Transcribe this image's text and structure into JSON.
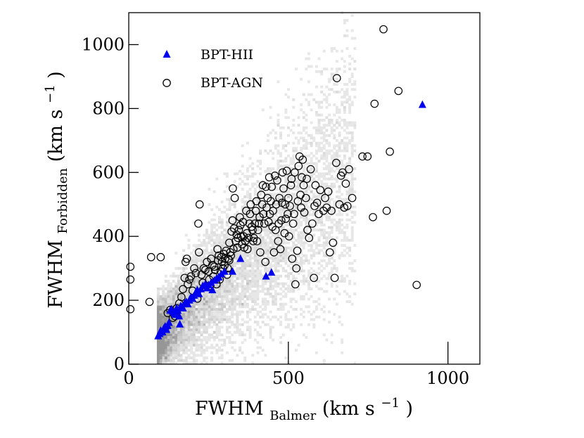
{
  "chart_data": {
    "type": "scatter",
    "title": "",
    "xlabel": {
      "main": "FWHM",
      "sub": "Balmer",
      "unit": "(km s",
      "exp": "−1",
      "close": ")"
    },
    "ylabel": {
      "main": "FWHM",
      "sub": "Forbidden",
      "unit": "(km s",
      "exp": "−1",
      "close": ")"
    },
    "xlim": [
      0,
      1100
    ],
    "ylim": [
      0,
      1100
    ],
    "xticks": [
      0,
      500,
      1000
    ],
    "yticks": [
      0,
      200,
      400,
      600,
      800,
      1000
    ],
    "xtick_labels": [
      "0",
      "500",
      "1000"
    ],
    "ytick_labels": [
      "0",
      "200",
      "400",
      "600",
      "800",
      "1000"
    ],
    "legend_position": "top-left",
    "background": "grey 2D density histogram of the full sample, densest along the one-to-one region below ~300 km/s",
    "series": [
      {
        "name": "BPT-HII",
        "marker": "filled-triangle",
        "color": "#0000ee",
        "points": [
          [
            92,
            88
          ],
          [
            97,
            95
          ],
          [
            100,
            105
          ],
          [
            106,
            100
          ],
          [
            110,
            112
          ],
          [
            114,
            118
          ],
          [
            118,
            108
          ],
          [
            122,
            120
          ],
          [
            126,
            130
          ],
          [
            130,
            168
          ],
          [
            134,
            172
          ],
          [
            138,
            165
          ],
          [
            142,
            160
          ],
          [
            146,
            155
          ],
          [
            150,
            175
          ],
          [
            154,
            168
          ],
          [
            158,
            150
          ],
          [
            160,
            125
          ],
          [
            163,
            182
          ],
          [
            166,
            178
          ],
          [
            170,
            175
          ],
          [
            175,
            190
          ],
          [
            180,
            195
          ],
          [
            185,
            188
          ],
          [
            190,
            200
          ],
          [
            195,
            210
          ],
          [
            200,
            205
          ],
          [
            205,
            215
          ],
          [
            210,
            225
          ],
          [
            215,
            232
          ],
          [
            220,
            220
          ],
          [
            226,
            235
          ],
          [
            232,
            245
          ],
          [
            240,
            250
          ],
          [
            245,
            238
          ],
          [
            250,
            248
          ],
          [
            258,
            255
          ],
          [
            262,
            232
          ],
          [
            268,
            262
          ],
          [
            275,
            268
          ],
          [
            282,
            272
          ],
          [
            290,
            282
          ],
          [
            300,
            290
          ],
          [
            325,
            290
          ],
          [
            350,
            330
          ],
          [
            430,
            275
          ],
          [
            447,
            287
          ],
          [
            920,
            812
          ]
        ]
      },
      {
        "name": "BPT-AGN",
        "marker": "open-circle",
        "color": "#000000",
        "points": [
          [
            5,
            305
          ],
          [
            5,
            265
          ],
          [
            5,
            172
          ],
          [
            65,
            195
          ],
          [
            70,
            335
          ],
          [
            100,
            335
          ],
          [
            122,
            160
          ],
          [
            130,
            170
          ],
          [
            138,
            145
          ],
          [
            145,
            150
          ],
          [
            150,
            175
          ],
          [
            158,
            190
          ],
          [
            165,
            210
          ],
          [
            170,
            235
          ],
          [
            175,
            270
          ],
          [
            178,
            320
          ],
          [
            182,
            330
          ],
          [
            185,
            250
          ],
          [
            190,
            265
          ],
          [
            195,
            275
          ],
          [
            200,
            230
          ],
          [
            205,
            300
          ],
          [
            210,
            285
          ],
          [
            215,
            205
          ],
          [
            218,
            440
          ],
          [
            220,
            350
          ],
          [
            222,
            500
          ],
          [
            228,
            280
          ],
          [
            232,
            255
          ],
          [
            235,
            300
          ],
          [
            240,
            295
          ],
          [
            245,
            320
          ],
          [
            250,
            290
          ],
          [
            252,
            265
          ],
          [
            255,
            245
          ],
          [
            258,
            330
          ],
          [
            262,
            310
          ],
          [
            265,
            275
          ],
          [
            268,
            305
          ],
          [
            270,
            295
          ],
          [
            275,
            250
          ],
          [
            278,
            360
          ],
          [
            280,
            325
          ],
          [
            282,
            340
          ],
          [
            285,
            265
          ],
          [
            288,
            290
          ],
          [
            290,
            335
          ],
          [
            292,
            320
          ],
          [
            295,
            300
          ],
          [
            298,
            345
          ],
          [
            300,
            310
          ],
          [
            302,
            330
          ],
          [
            305,
            355
          ],
          [
            308,
            280
          ],
          [
            310,
            300
          ],
          [
            312,
            330
          ],
          [
            315,
            380
          ],
          [
            315,
            325
          ],
          [
            318,
            350
          ],
          [
            320,
            340
          ],
          [
            322,
            415
          ],
          [
            325,
            450
          ],
          [
            326,
            550
          ],
          [
            328,
            360
          ],
          [
            330,
            425
          ],
          [
            332,
            520
          ],
          [
            335,
            385
          ],
          [
            338,
            405
          ],
          [
            340,
            365
          ],
          [
            342,
            395
          ],
          [
            345,
            420
          ],
          [
            348,
            460
          ],
          [
            350,
            435
          ],
          [
            352,
            400
          ],
          [
            355,
            375
          ],
          [
            358,
            445
          ],
          [
            360,
            400
          ],
          [
            362,
            365
          ],
          [
            365,
            385
          ],
          [
            368,
            480
          ],
          [
            370,
            410
          ],
          [
            372,
            360
          ],
          [
            375,
            395
          ],
          [
            378,
            440
          ],
          [
            380,
            470
          ],
          [
            382,
            500
          ],
          [
            385,
            430
          ],
          [
            388,
            420
          ],
          [
            390,
            385
          ],
          [
            392,
            395
          ],
          [
            395,
            440
          ],
          [
            398,
            480
          ],
          [
            400,
            510
          ],
          [
            402,
            385
          ],
          [
            405,
            420
          ],
          [
            408,
            440
          ],
          [
            410,
            460
          ],
          [
            412,
            350
          ],
          [
            415,
            530
          ],
          [
            418,
            500
          ],
          [
            420,
            560
          ],
          [
            422,
            470
          ],
          [
            425,
            440
          ],
          [
            428,
            320
          ],
          [
            430,
            555
          ],
          [
            432,
            490
          ],
          [
            435,
            520
          ],
          [
            438,
            445
          ],
          [
            440,
            585
          ],
          [
            442,
            470
          ],
          [
            445,
            510
          ],
          [
            448,
            555
          ],
          [
            450,
            430
          ],
          [
            452,
            480
          ],
          [
            455,
            350
          ],
          [
            458,
            590
          ],
          [
            460,
            420
          ],
          [
            462,
            500
          ],
          [
            465,
            575
          ],
          [
            468,
            385
          ],
          [
            470,
            440
          ],
          [
            472,
            520
          ],
          [
            475,
            360
          ],
          [
            478,
            450
          ],
          [
            480,
            505
          ],
          [
            482,
            600
          ],
          [
            485,
            550
          ],
          [
            488,
            410
          ],
          [
            490,
            500
          ],
          [
            492,
            455
          ],
          [
            495,
            605
          ],
          [
            498,
            470
          ],
          [
            500,
            520
          ],
          [
            502,
            400
          ],
          [
            505,
            495
          ],
          [
            508,
            560
          ],
          [
            510,
            580
          ],
          [
            512,
            330
          ],
          [
            515,
            440
          ],
          [
            518,
            470
          ],
          [
            520,
            600
          ],
          [
            522,
            250
          ],
          [
            525,
            300
          ],
          [
            528,
            355
          ],
          [
            530,
            510
          ],
          [
            532,
            620
          ],
          [
            535,
            650
          ],
          [
            538,
            530
          ],
          [
            540,
            490
          ],
          [
            542,
            585
          ],
          [
            545,
            640
          ],
          [
            548,
            560
          ],
          [
            550,
            475
          ],
          [
            555,
            520
          ],
          [
            558,
            580
          ],
          [
            560,
            420
          ],
          [
            565,
            395
          ],
          [
            570,
            610
          ],
          [
            575,
            440
          ],
          [
            580,
            270
          ],
          [
            582,
            495
          ],
          [
            585,
            560
          ],
          [
            590,
            505
          ],
          [
            595,
            470
          ],
          [
            600,
            545
          ],
          [
            610,
            480
          ],
          [
            615,
            520
          ],
          [
            620,
            490
          ],
          [
            625,
            540
          ],
          [
            630,
            350
          ],
          [
            635,
            480
          ],
          [
            640,
            380
          ],
          [
            645,
            270
          ],
          [
            650,
            630
          ],
          [
            652,
            895
          ],
          [
            660,
            500
          ],
          [
            665,
            590
          ],
          [
            670,
            600
          ],
          [
            675,
            490
          ],
          [
            680,
            565
          ],
          [
            685,
            495
          ],
          [
            690,
            610
          ],
          [
            700,
            520
          ],
          [
            732,
            650
          ],
          [
            748,
            650
          ],
          [
            765,
            460
          ],
          [
            770,
            815
          ],
          [
            798,
            1048
          ],
          [
            808,
            480
          ],
          [
            818,
            665
          ],
          [
            845,
            855
          ],
          [
            902,
            248
          ]
        ]
      }
    ]
  }
}
